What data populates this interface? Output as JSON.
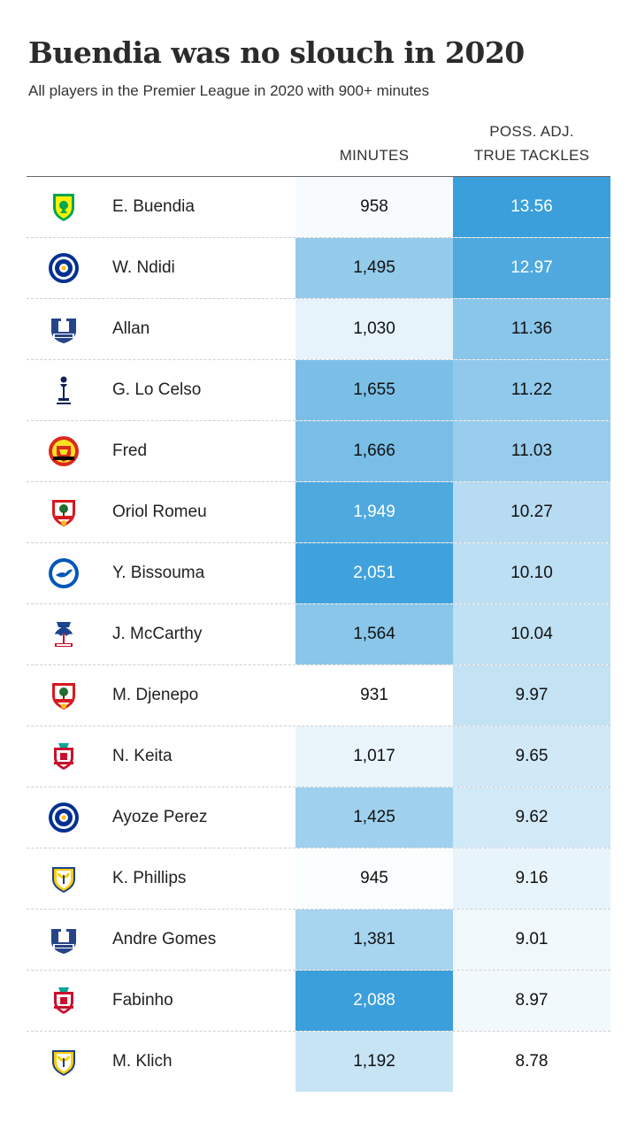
{
  "title": "Buendia was no slouch in 2020",
  "subtitle": "All players in the Premier League in 2020 with 900+ minutes",
  "columns": {
    "minutes": "MINUTES",
    "tackles_line1": "POSS. ADJ.",
    "tackles_line2": "TRUE TACKLES"
  },
  "colors": {
    "text": "#222222",
    "cell_max": "#3a9fdb",
    "cell_min": "#ffffff"
  },
  "chart_data": {
    "type": "table",
    "columns": [
      "MINUTES",
      "POSS. ADJ. TRUE TACKLES"
    ],
    "rows": [
      {
        "player": "E. Buendia",
        "crest": "norwich-city-crest-icon",
        "minutes": "958",
        "tackles": "13.56"
      },
      {
        "player": "W. Ndidi",
        "crest": "leicester-city-crest-icon",
        "minutes": "1,495",
        "tackles": "12.97"
      },
      {
        "player": "Allan",
        "crest": "everton-crest-icon",
        "minutes": "1,030",
        "tackles": "11.36"
      },
      {
        "player": "G. Lo Celso",
        "crest": "tottenham-crest-icon",
        "minutes": "1,655",
        "tackles": "11.22"
      },
      {
        "player": "Fred",
        "crest": "manchester-united-crest-icon",
        "minutes": "1,666",
        "tackles": "11.03"
      },
      {
        "player": "Oriol Romeu",
        "crest": "southampton-crest-icon",
        "minutes": "1,949",
        "tackles": "10.27"
      },
      {
        "player": "Y. Bissouma",
        "crest": "brighton-crest-icon",
        "minutes": "2,051",
        "tackles": "10.10"
      },
      {
        "player": "J. McCarthy",
        "crest": "crystal-palace-crest-icon",
        "minutes": "1,564",
        "tackles": "10.04"
      },
      {
        "player": "M. Djenepo",
        "crest": "southampton-crest-icon",
        "minutes": "931",
        "tackles": "9.97"
      },
      {
        "player": "N. Keita",
        "crest": "liverpool-crest-icon",
        "minutes": "1,017",
        "tackles": "9.65"
      },
      {
        "player": "Ayoze Perez",
        "crest": "leicester-city-crest-icon",
        "minutes": "1,425",
        "tackles": "9.62"
      },
      {
        "player": "K. Phillips",
        "crest": "leeds-united-crest-icon",
        "minutes": "945",
        "tackles": "9.16"
      },
      {
        "player": "Andre Gomes",
        "crest": "everton-crest-icon",
        "minutes": "1,381",
        "tackles": "9.01"
      },
      {
        "player": "Fabinho",
        "crest": "liverpool-crest-icon",
        "minutes": "2,088",
        "tackles": "8.97"
      },
      {
        "player": "M. Klich",
        "crest": "leeds-united-crest-icon",
        "minutes": "1,192",
        "tackles": "8.78"
      }
    ]
  }
}
